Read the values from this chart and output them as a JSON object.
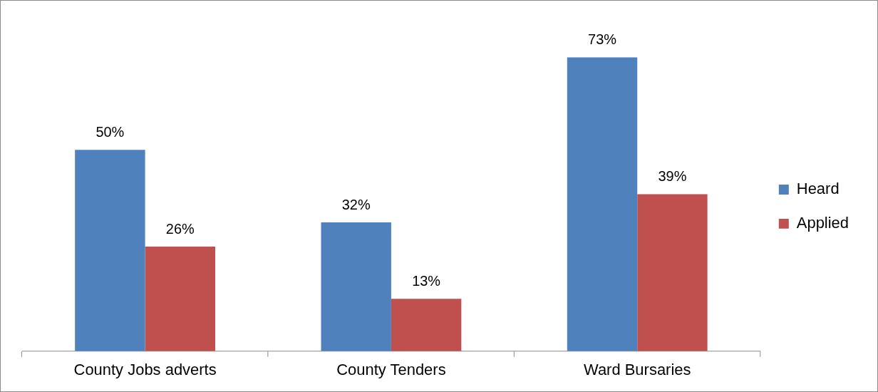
{
  "chart_data": {
    "type": "bar",
    "categories": [
      "County Jobs adverts",
      "County Tenders",
      "Ward Bursaries"
    ],
    "series": [
      {
        "name": "Heard",
        "color": "#4f81bd",
        "values": [
          50,
          32,
          73
        ],
        "value_labels": [
          "50%",
          "32%",
          "73%"
        ]
      },
      {
        "name": "Applied",
        "color": "#c0504d",
        "values": [
          26,
          13,
          39
        ],
        "value_labels": [
          "26%",
          "13%",
          "39%"
        ]
      }
    ],
    "legend": "right",
    "grid": false
  }
}
